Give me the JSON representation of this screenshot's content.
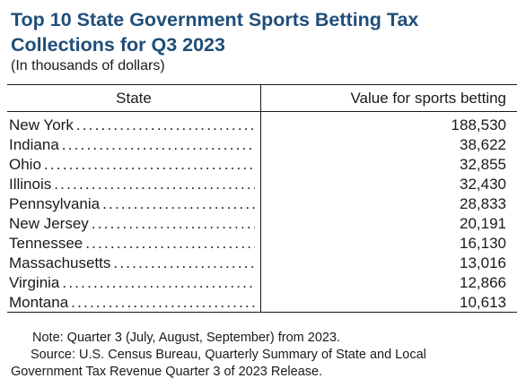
{
  "title": "Top 10 State Government Sports Betting Tax Collections for Q3 2023",
  "subtitle": "(In thousands of dollars)",
  "table": {
    "header_state": "State",
    "header_value": "Value for sports betting"
  },
  "chart_data": {
    "type": "table",
    "title": "Top 10 State Government Sports Betting Tax Collections for Q3 2023",
    "subtitle": "(In thousands of dollars)",
    "columns": [
      "State",
      "Value for sports betting"
    ],
    "categories": [
      "New York",
      "Indiana",
      "Ohio",
      "Illinois",
      "Pennsylvania",
      "New Jersey",
      "Tennessee",
      "Massachusetts",
      "Virginia",
      "Montana"
    ],
    "values": [
      188530,
      38622,
      32855,
      32430,
      28833,
      20191,
      16130,
      13016,
      12866,
      10613
    ],
    "value_labels": [
      "188,530",
      "38,622",
      "32,855",
      "32,430",
      "28,833",
      "20,191",
      "16,130",
      "13,016",
      "12,866",
      "10,613"
    ]
  },
  "notes": {
    "note": "Note: Quarter 3 (July, August, September) from 2023.",
    "source_line1": "Source: U.S. Census Bureau, Quarterly Summary of State and Local",
    "source_line2": "Government Tax Revenue Quarter 3 of 2023 Release."
  }
}
